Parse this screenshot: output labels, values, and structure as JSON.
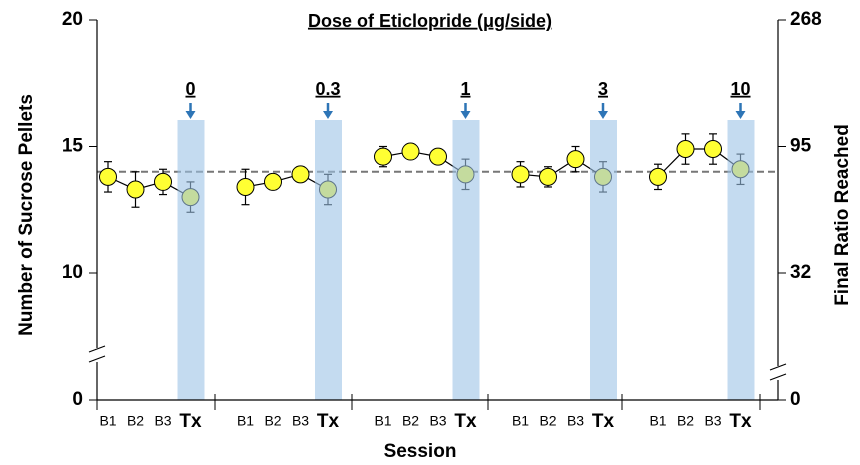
{
  "chart_data": {
    "type": "line",
    "title": "Dose of Eticlopride (μg/side)",
    "y_label": "Number of Sucrose Pellets",
    "y2_label": "Final Ratio Reached",
    "x_label": "Session",
    "categories": [
      "B1",
      "B2",
      "B3",
      "Tx"
    ],
    "ylim": [
      10,
      20
    ],
    "yticks": [
      0,
      10,
      15,
      20
    ],
    "y2ticks": [
      0,
      32,
      95,
      268
    ],
    "axis_break": true,
    "reference_line": 14.0,
    "color": "#ffff33",
    "band_color": "#9dc3e6",
    "arrow_color": "#2e75b6",
    "groups": [
      {
        "dose": "0",
        "values": [
          13.8,
          13.3,
          13.6,
          13.0
        ],
        "errors": [
          0.6,
          0.7,
          0.5,
          0.6
        ]
      },
      {
        "dose": "0.3",
        "values": [
          13.4,
          13.6,
          13.9,
          13.3
        ],
        "errors": [
          0.7,
          0.3,
          0.3,
          0.6
        ]
      },
      {
        "dose": "1",
        "values": [
          14.6,
          14.8,
          14.6,
          13.9
        ],
        "errors": [
          0.4,
          0.2,
          0.2,
          0.6
        ]
      },
      {
        "dose": "3",
        "values": [
          13.9,
          13.8,
          14.5,
          13.8
        ],
        "errors": [
          0.5,
          0.4,
          0.5,
          0.6
        ]
      },
      {
        "dose": "10",
        "values": [
          13.8,
          14.9,
          14.9,
          14.1
        ],
        "errors": [
          0.5,
          0.6,
          0.6,
          0.6
        ]
      }
    ]
  }
}
